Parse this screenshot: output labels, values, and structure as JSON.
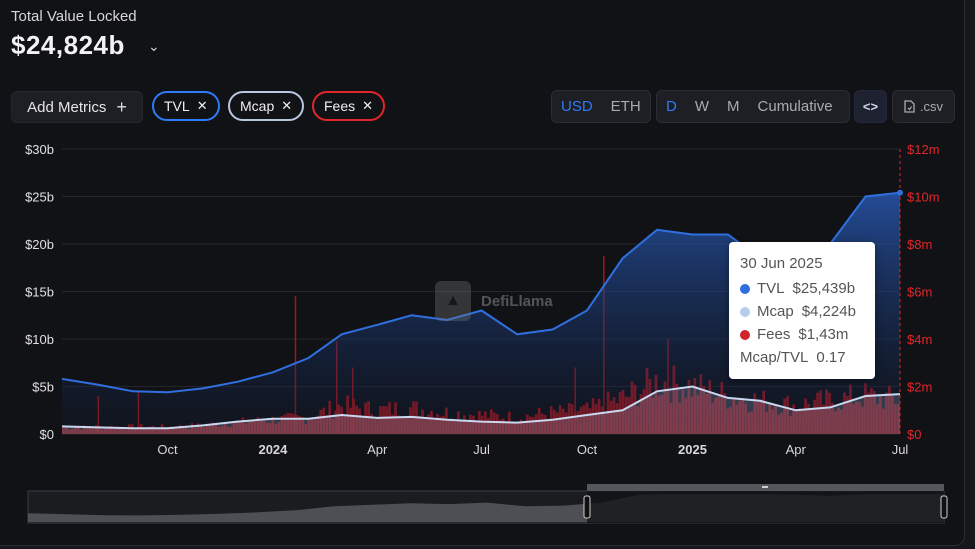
{
  "header": {
    "title": "Total Value Locked",
    "value": "$24,824b",
    "value_chevron_icon": "chevron-down-icon"
  },
  "toolbar": {
    "add_metrics_label": "Add Metrics",
    "add_icon": "plus-icon",
    "chips": [
      {
        "label": "TVL",
        "color": "#2f7af8"
      },
      {
        "label": "Mcap",
        "color": "#b9c6e0"
      },
      {
        "label": "Fees",
        "color": "#e0262b"
      }
    ],
    "close_glyph": "✕",
    "currency": [
      {
        "label": "USD",
        "active": true
      },
      {
        "label": "ETH",
        "active": false
      }
    ],
    "period": [
      {
        "label": "D",
        "active": true
      },
      {
        "label": "W",
        "active": false
      },
      {
        "label": "M",
        "active": false
      },
      {
        "label": "Cumulative",
        "active": false
      }
    ],
    "embed_icon": "code-icon",
    "embed_label": "<>",
    "csv_label": ".csv",
    "csv_icon": "file-icon"
  },
  "watermark": "DefiLlama",
  "tooltip": {
    "date": "30 Jun 2025",
    "rows": [
      {
        "label": "TVL",
        "value": "$25,439b",
        "color": "#2f6fe0"
      },
      {
        "label": "Mcap",
        "value": "$4,224b",
        "color": "#b6cdea"
      },
      {
        "label": "Fees",
        "value": "$1,43m",
        "color": "#d0242a"
      }
    ],
    "ratio_label": "Mcap/TVL",
    "ratio_value": "0.17"
  },
  "chart_data": {
    "type": "line",
    "x_ticks": [
      "Oct",
      "2024",
      "Apr",
      "Jul",
      "Oct",
      "2025",
      "Apr",
      "Jul"
    ],
    "y_left_ticks": [
      "$0",
      "$5b",
      "$10b",
      "$15b",
      "$20b",
      "$25b",
      "$30b"
    ],
    "y_right_ticks": [
      "$0",
      "$2m",
      "$4m",
      "$6m",
      "$8m",
      "$10m",
      "$12m"
    ],
    "y_left_range": [
      0,
      30
    ],
    "y_right_range": [
      0,
      12
    ],
    "x_range": [
      "2023-07-01",
      "2025-07-01"
    ],
    "grid": true,
    "series": [
      {
        "name": "TVL",
        "color": "#2f6fe0",
        "axis": "left",
        "style": "area",
        "x": [
          "2023-07-01",
          "2023-08-01",
          "2023-09-01",
          "2023-10-01",
          "2023-11-01",
          "2023-12-01",
          "2024-01-01",
          "2024-02-01",
          "2024-03-01",
          "2024-04-01",
          "2024-05-01",
          "2024-06-01",
          "2024-07-01",
          "2024-08-01",
          "2024-09-01",
          "2024-10-01",
          "2024-11-01",
          "2024-12-01",
          "2025-01-01",
          "2025-02-01",
          "2025-03-01",
          "2025-04-01",
          "2025-05-01",
          "2025-06-01",
          "2025-07-01"
        ],
        "values": [
          5.8,
          5.2,
          4.5,
          4.4,
          4.8,
          5.5,
          6.5,
          8.0,
          10.5,
          11.5,
          12.5,
          12.0,
          13.0,
          10.5,
          11.0,
          13.0,
          18.5,
          21.5,
          21.0,
          21.0,
          18.5,
          17.5,
          20.0,
          25.0,
          25.4
        ]
      },
      {
        "name": "Mcap",
        "color": "#c9d8ef",
        "axis": "left",
        "style": "line",
        "x": [
          "2023-07-01",
          "2023-08-01",
          "2023-09-01",
          "2023-10-01",
          "2023-11-01",
          "2023-12-01",
          "2024-01-01",
          "2024-02-01",
          "2024-03-01",
          "2024-04-01",
          "2024-05-01",
          "2024-06-01",
          "2024-07-01",
          "2024-08-01",
          "2024-09-01",
          "2024-10-01",
          "2024-11-01",
          "2024-12-01",
          "2025-01-01",
          "2025-02-01",
          "2025-03-01",
          "2025-04-01",
          "2025-05-01",
          "2025-06-01",
          "2025-07-01"
        ],
        "values": [
          0.8,
          0.7,
          0.6,
          0.6,
          0.9,
          1.3,
          1.6,
          1.6,
          2.0,
          1.7,
          1.8,
          1.5,
          1.3,
          1.2,
          1.5,
          2.0,
          2.5,
          4.5,
          5.0,
          3.8,
          3.5,
          2.5,
          2.8,
          4.0,
          4.2
        ]
      },
      {
        "name": "Fees",
        "color": "#b8171c",
        "axis": "right",
        "style": "bars",
        "x": [
          "2023-07-01",
          "2023-08-01",
          "2023-09-01",
          "2023-10-01",
          "2023-11-01",
          "2023-12-01",
          "2024-01-01",
          "2024-02-01",
          "2024-03-01",
          "2024-04-01",
          "2024-05-01",
          "2024-06-01",
          "2024-07-01",
          "2024-08-01",
          "2024-09-01",
          "2024-10-01",
          "2024-11-01",
          "2024-12-01",
          "2025-01-01",
          "2025-02-01",
          "2025-03-01",
          "2025-04-01",
          "2025-05-01",
          "2025-06-01",
          "2025-07-01"
        ],
        "values": [
          0.25,
          0.3,
          0.3,
          0.3,
          0.35,
          0.5,
          0.6,
          0.7,
          1.2,
          1.0,
          1.1,
          0.9,
          0.8,
          0.7,
          0.9,
          1.0,
          1.5,
          2.2,
          2.0,
          1.6,
          1.4,
          1.2,
          1.4,
          1.6,
          1.43
        ]
      }
    ],
    "spikes": [
      {
        "x": "2024-01-20",
        "value": 5.8,
        "axis": "right"
      },
      {
        "x": "2024-10-15",
        "value": 7.5,
        "axis": "right"
      },
      {
        "x": "2024-02-25",
        "value": 3.9,
        "axis": "right"
      },
      {
        "x": "2024-03-10",
        "value": 2.8,
        "axis": "right"
      },
      {
        "x": "2024-09-20",
        "value": 2.8,
        "axis": "right"
      },
      {
        "x": "2024-12-10",
        "value": 4.0,
        "axis": "right"
      },
      {
        "x": "2023-09-05",
        "value": 1.8,
        "axis": "right"
      },
      {
        "x": "2023-08-01",
        "value": 1.6,
        "axis": "right"
      }
    ]
  }
}
